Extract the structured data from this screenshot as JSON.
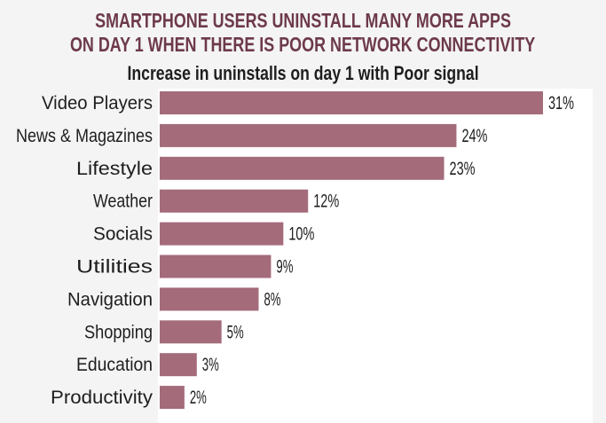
{
  "chart_data": {
    "type": "bar",
    "orientation": "horizontal",
    "title": "SMARTPHONE USERS UNINSTALL MANY MORE APPS ON DAY 1 WHEN THERE IS POOR NETWORK CONNECTIVITY",
    "title_lines": [
      "SMARTPHONE USERS UNINSTALL MANY MORE APPS",
      "ON DAY 1 WHEN THERE IS POOR NETWORK CONNECTIVITY"
    ],
    "subtitle": "Increase in uninstalls on day 1 with Poor signal",
    "categories": [
      "Video Players",
      "News & Magazines",
      "Lifestyle",
      "Weather",
      "Socials",
      "Utilities",
      "Navigation",
      "Shopping",
      "Education",
      "Productivity"
    ],
    "values": [
      31,
      24,
      23,
      12,
      10,
      9,
      8,
      5,
      3,
      2
    ],
    "value_labels": [
      "31%",
      "24%",
      "23%",
      "12%",
      "10%",
      "9%",
      "8%",
      "5%",
      "3%",
      "2%"
    ],
    "unit": "%",
    "xlim": [
      0,
      31
    ],
    "grid": false,
    "colors": {
      "bar": "#a46b7b",
      "title": "#6d3a4a",
      "text": "#1e1e1e"
    }
  }
}
